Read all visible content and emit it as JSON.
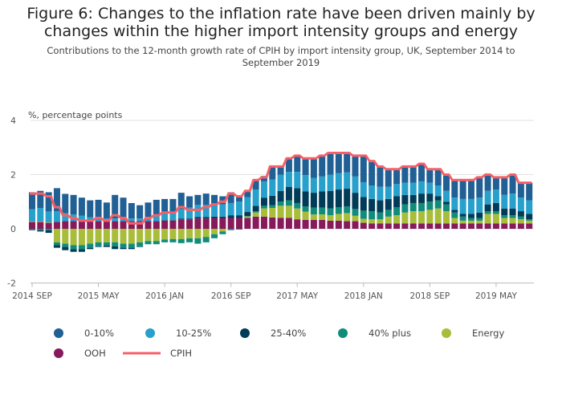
{
  "chart_data": {
    "type": "bar",
    "stacked": true,
    "title": "Figure 6: Changes to the inflation rate have been driven mainly by changes within the higher import intensity groups and energy",
    "subtitle": "Contributions to the 12-month growth rate of CPIH by import intensity group, UK, September 2014 to September 2019",
    "ylabel": "%, percentage points",
    "ylim": [
      -2,
      4
    ],
    "yticks": [
      4,
      2,
      0,
      -2
    ],
    "xtick_labels": [
      {
        "i": 0,
        "label": "2014 SEP"
      },
      {
        "i": 8,
        "label": "2015 MAY"
      },
      {
        "i": 16,
        "label": "2016 JAN"
      },
      {
        "i": 24,
        "label": "2016 SEP"
      },
      {
        "i": 32,
        "label": "2017 MAY"
      },
      {
        "i": 40,
        "label": "2018 JAN"
      },
      {
        "i": 48,
        "label": "2018 SEP"
      },
      {
        "i": 56,
        "label": "2019 MAY"
      }
    ],
    "x_start": "2014-09",
    "x_end": "2019-09",
    "periods": 61,
    "grid": true,
    "legend_placement": "bottom",
    "series": [
      {
        "name": "OOH",
        "color": "#871a5b",
        "values": [
          0.25,
          0.25,
          0.22,
          0.25,
          0.28,
          0.28,
          0.28,
          0.28,
          0.28,
          0.28,
          0.28,
          0.28,
          0.28,
          0.28,
          0.28,
          0.28,
          0.3,
          0.3,
          0.35,
          0.35,
          0.38,
          0.38,
          0.4,
          0.4,
          0.4,
          0.4,
          0.4,
          0.45,
          0.45,
          0.42,
          0.4,
          0.4,
          0.35,
          0.33,
          0.33,
          0.33,
          0.3,
          0.3,
          0.28,
          0.28,
          0.22,
          0.2,
          0.2,
          0.2,
          0.2,
          0.2,
          0.2,
          0.2,
          0.2,
          0.2,
          0.2,
          0.2,
          0.2,
          0.2,
          0.2,
          0.2,
          0.2,
          0.2,
          0.2,
          0.2,
          0.2
        ]
      },
      {
        "name": "Energy",
        "color": "#a8bd3a",
        "values": [
          0.02,
          0.02,
          0.02,
          -0.5,
          -0.55,
          -0.6,
          -0.6,
          -0.55,
          -0.5,
          -0.5,
          -0.5,
          -0.55,
          -0.55,
          -0.5,
          -0.45,
          -0.45,
          -0.4,
          -0.38,
          -0.38,
          -0.35,
          -0.35,
          -0.3,
          -0.2,
          -0.1,
          0,
          0,
          0.05,
          0.15,
          0.3,
          0.35,
          0.45,
          0.45,
          0.4,
          0.3,
          0.2,
          0.2,
          0.2,
          0.25,
          0.3,
          0.2,
          0.15,
          0.15,
          0.15,
          0.25,
          0.3,
          0.4,
          0.45,
          0.45,
          0.5,
          0.55,
          0.45,
          0.2,
          0.1,
          0.1,
          0.1,
          0.35,
          0.35,
          0.2,
          0.2,
          0.15,
          0.1
        ]
      },
      {
        "name": "40% plus",
        "color": "#118c7b",
        "values": [
          -0.03,
          -0.05,
          -0.05,
          -0.1,
          -0.12,
          -0.15,
          -0.15,
          -0.15,
          -0.15,
          -0.12,
          -0.15,
          -0.15,
          -0.15,
          -0.15,
          -0.12,
          -0.12,
          -0.1,
          -0.12,
          -0.15,
          -0.15,
          -0.2,
          -0.2,
          -0.15,
          -0.1,
          -0.05,
          -0.03,
          0.02,
          0.05,
          0.1,
          0.1,
          0.15,
          0.2,
          0.2,
          0.2,
          0.25,
          0.25,
          0.25,
          0.25,
          0.25,
          0.25,
          0.3,
          0.3,
          0.25,
          0.25,
          0.3,
          0.3,
          0.3,
          0.3,
          0.3,
          0.3,
          0.25,
          0.2,
          0.15,
          0.1,
          0.1,
          0.1,
          0.1,
          0.1,
          0.1,
          0.1,
          0.05
        ]
      },
      {
        "name": "25-40%",
        "color": "#003c57",
        "values": [
          -0.02,
          -0.05,
          -0.1,
          -0.1,
          -0.12,
          -0.1,
          -0.1,
          -0.05,
          -0.02,
          -0.05,
          -0.1,
          -0.05,
          -0.05,
          -0.02,
          0,
          0,
          0.02,
          0.02,
          0.03,
          0.03,
          0.05,
          0.05,
          0.05,
          0.05,
          0.1,
          0.1,
          0.15,
          0.2,
          0.3,
          0.35,
          0.4,
          0.5,
          0.55,
          0.55,
          0.55,
          0.6,
          0.65,
          0.65,
          0.65,
          0.6,
          0.5,
          0.45,
          0.45,
          0.4,
          0.4,
          0.35,
          0.3,
          0.35,
          0.3,
          0.15,
          0.1,
          0.1,
          0.1,
          0.15,
          0.2,
          0.25,
          0.3,
          0.25,
          0.25,
          0.2,
          0.2
        ]
      },
      {
        "name": "10-25%",
        "color": "#27a0cc",
        "values": [
          0.45,
          0.5,
          0.4,
          0.4,
          0.3,
          0.25,
          0.2,
          0.15,
          0.1,
          0.1,
          0.1,
          0.1,
          0.1,
          0.1,
          0.15,
          0.2,
          0.25,
          0.3,
          0.35,
          0.4,
          0.45,
          0.45,
          0.45,
          0.45,
          0.45,
          0.5,
          0.55,
          0.6,
          0.6,
          0.6,
          0.6,
          0.55,
          0.6,
          0.6,
          0.55,
          0.55,
          0.6,
          0.6,
          0.6,
          0.6,
          0.55,
          0.5,
          0.5,
          0.45,
          0.45,
          0.45,
          0.45,
          0.45,
          0.4,
          0.4,
          0.4,
          0.45,
          0.55,
          0.55,
          0.55,
          0.5,
          0.5,
          0.5,
          0.55,
          0.5,
          0.5
        ]
      },
      {
        "name": "0-10%",
        "color": "#206095",
        "values": [
          0.63,
          0.63,
          0.71,
          0.85,
          0.71,
          0.72,
          0.67,
          0.62,
          0.69,
          0.59,
          0.87,
          0.77,
          0.57,
          0.49,
          0.54,
          0.59,
          0.53,
          0.48,
          0.6,
          0.42,
          0.37,
          0.42,
          0.35,
          0.3,
          0.4,
          0.23,
          0.23,
          0.35,
          0.2,
          0.48,
          0.3,
          0.5,
          0.6,
          0.62,
          0.72,
          0.77,
          0.8,
          0.75,
          0.72,
          0.77,
          0.98,
          0.9,
          0.75,
          0.65,
          0.55,
          0.6,
          0.6,
          0.65,
          0.5,
          0.6,
          0.6,
          0.65,
          0.7,
          0.7,
          0.75,
          0.6,
          0.45,
          0.65,
          0.7,
          0.55,
          0.65
        ]
      }
    ],
    "line": {
      "name": "CPIH",
      "color": "#f66068",
      "values": [
        1.3,
        1.3,
        1.2,
        0.8,
        0.5,
        0.4,
        0.3,
        0.3,
        0.4,
        0.3,
        0.5,
        0.4,
        0.2,
        0.2,
        0.4,
        0.5,
        0.6,
        0.6,
        0.8,
        0.7,
        0.7,
        0.8,
        0.9,
        1.0,
        1.3,
        1.2,
        1.4,
        1.8,
        1.9,
        2.3,
        2.3,
        2.6,
        2.7,
        2.6,
        2.6,
        2.7,
        2.8,
        2.8,
        2.8,
        2.7,
        2.7,
        2.5,
        2.3,
        2.2,
        2.2,
        2.3,
        2.3,
        2.4,
        2.2,
        2.2,
        2.0,
        1.8,
        1.8,
        1.8,
        1.9,
        2.0,
        1.9,
        1.9,
        2.0,
        1.7,
        1.7
      ]
    },
    "legend": [
      "0-10%",
      "10-25%",
      "25-40%",
      "40% plus",
      "Energy",
      "OOH",
      "CPIH"
    ]
  }
}
